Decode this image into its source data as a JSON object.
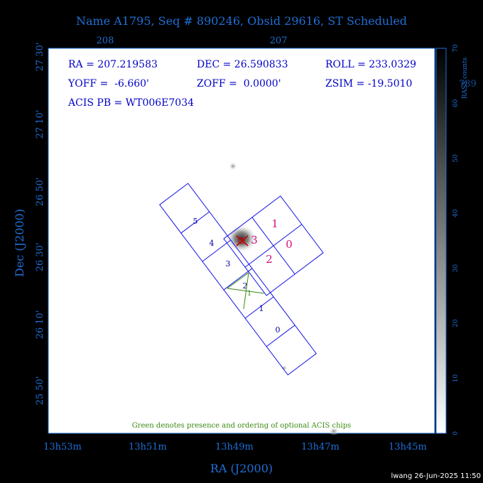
{
  "title": "Name A1795, Seq # 890246, Obsid 29616, ST Scheduled",
  "info": {
    "ra": "RA = 207.219583",
    "dec": "DEC = 26.590833",
    "roll": "ROLL = 233.0329",
    "yoff": "YOFF =  -6.660'",
    "zoff": "ZOFF =  0.0000'",
    "zsim": "ZSIM = -19.5010",
    "acis_pb": "ACIS PB = WT006E7034"
  },
  "top_ticks": [
    "208",
    "207"
  ],
  "left_ticks": [
    "27 30'",
    "27 10'",
    "26 50'",
    "26 30'",
    "26 10'",
    "25 50'"
  ],
  "bottom_ticks": [
    "13h53m",
    "13h51m",
    "13h49m",
    "13h47m",
    "13h45m"
  ],
  "x_label": "RA (J2000)",
  "y_label": "Dec (J2000)",
  "colorbar": {
    "label": "RASS counts",
    "ticks": [
      "0",
      "10",
      "20",
      "30",
      "40",
      "50",
      "60",
      "70"
    ],
    "partial_overlap_text": "789"
  },
  "chips_i": [
    "0",
    "1",
    "2",
    "3"
  ],
  "chips_s": [
    "5",
    "4",
    "3",
    "2",
    "1",
    "0"
  ],
  "optional_chip": "1",
  "footnote": "Green denotes presence and ordering of optional ACIS chips",
  "signature": "lwang 26-Jun-2025 11:50",
  "colors": {
    "background": "#000000",
    "plot_bg": "#ffffff",
    "axis_text": "#1f6fd6",
    "info_text": "#0000c8",
    "chip_outline": "#1414e6",
    "i_chip_label": "#d0107a",
    "optional_chip": "#3a8a14",
    "source_marker": "#c80000"
  }
}
